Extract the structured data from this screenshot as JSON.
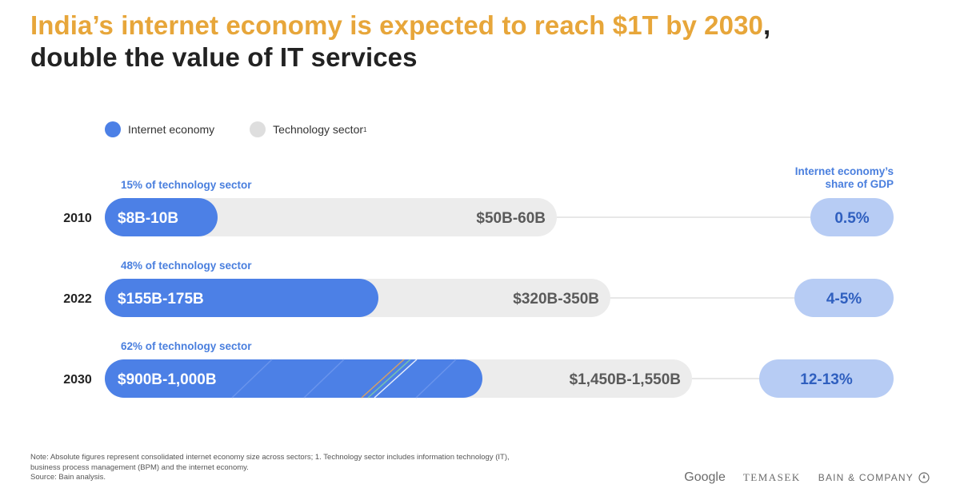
{
  "header": {
    "title_accent": "India’s internet economy is expected to reach $1T by 2030",
    "title_comma": ",",
    "title_line2": "double the value of IT services"
  },
  "legend": {
    "internet_label": "Internet economy",
    "tech_label": "Technology sector",
    "tech_sup": "1"
  },
  "gdp_header": {
    "line1": "Internet economy’s",
    "line2": "share of GDP"
  },
  "colors": {
    "internet": "#4c80e6",
    "tech": "#ececec",
    "gdp_pill": "#b7ccf4",
    "gdp_text": "#2f5fbf",
    "share_text": "#4a7fde",
    "tech_text": "#5a5a5a",
    "connector": "#cfcfcf"
  },
  "chart_data": {
    "type": "bar",
    "title": "India’s internet economy is expected to reach $1T by 2030, double the value of IT services",
    "categories": [
      "2010",
      "2022",
      "2030"
    ],
    "series": [
      {
        "name": "Internet economy",
        "labels": [
          "$8B-10B",
          "$155B-175B",
          "$900B-1,000B"
        ],
        "values": [
          9,
          165,
          950
        ]
      },
      {
        "name": "Technology sector",
        "labels": [
          "$50B-60B",
          "$320B-350B",
          "$1,450B-1,550B"
        ],
        "values": [
          55,
          335,
          1500
        ]
      }
    ],
    "share_of_tech_labels": [
      "15% of technology sector",
      "48% of technology sector",
      "62% of technology sector"
    ],
    "share_of_tech": [
      15,
      48,
      62
    ],
    "gdp_share_labels": [
      "0.5%",
      "4-5%",
      "12-13%"
    ],
    "gdp_share": [
      0.5,
      4.5,
      12.5
    ],
    "legend_position": "top-left"
  },
  "footnote": {
    "line1": "Note: Absolute figures represent consolidated internet economy size across sectors; 1. Technology sector includes information technology (IT),",
    "line2": "business process management (BPM) and the internet economy.",
    "line3": "Source: Bain analysis."
  },
  "logos": {
    "google": "Google",
    "temasek": "TEMASEK",
    "bain": "BAIN & COMPANY"
  }
}
